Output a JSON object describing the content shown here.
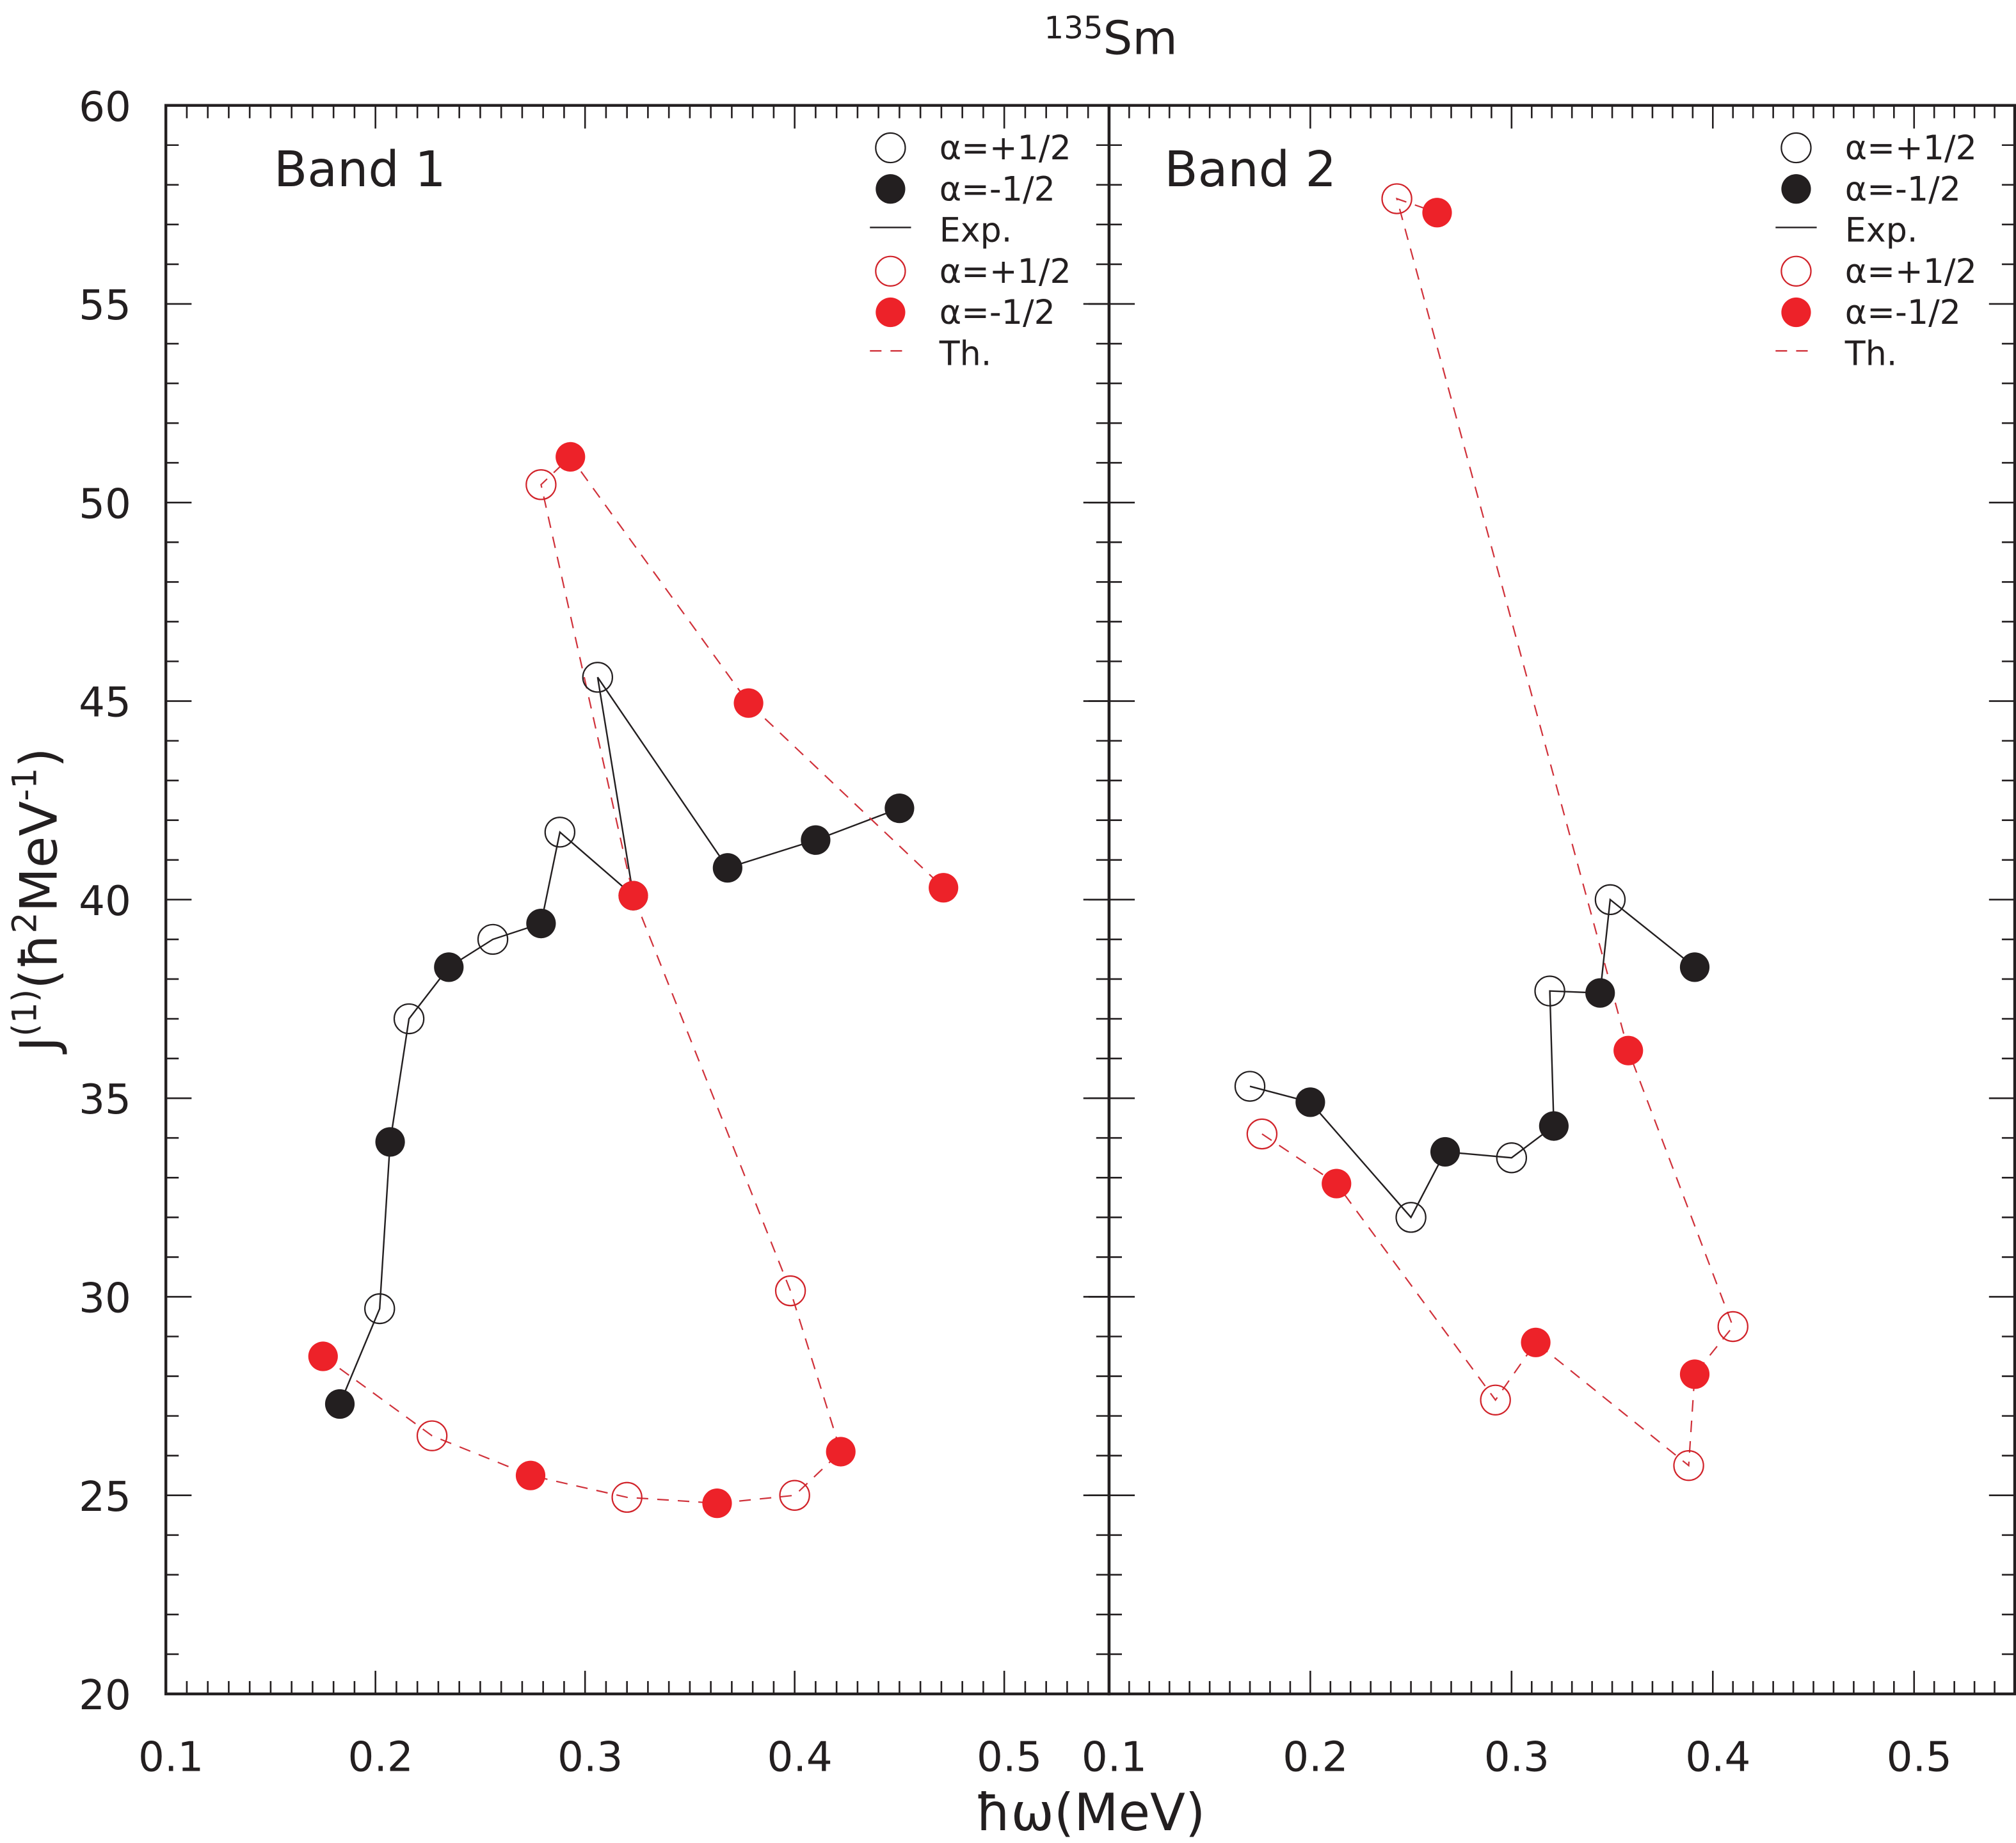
{
  "chart_data": {
    "type": "scatter",
    "title": "135Sm",
    "title_parts": {
      "mass_number": "135",
      "element": "Sm"
    },
    "xlabel": "ħω(MeV)",
    "ylabel": "J(1)(ħ2MeV-1)",
    "ylabel_parts": {
      "base": "J",
      "sup1": "(1)",
      "mid1": "(ħ",
      "sup2": "2",
      "mid2": "MeV",
      "sup3": "-1",
      "end": ")"
    },
    "xlim": [
      0.1,
      0.55
    ],
    "ylim": [
      20,
      60
    ],
    "x_ticks": [
      0.1,
      0.2,
      0.3,
      0.4,
      0.5
    ],
    "x_tick_labels": [
      "0.1",
      "0.2",
      "0.3",
      "0.4",
      "0.5"
    ],
    "x_minor_step": 0.01,
    "y_ticks": [
      20,
      25,
      30,
      35,
      40,
      45,
      50,
      55,
      60
    ],
    "y_tick_labels": [
      "20",
      "25",
      "30",
      "35",
      "40",
      "45",
      "50",
      "55",
      "60"
    ],
    "y_minor_step": 1,
    "grid": false,
    "legend_placement": "top-right",
    "legend": [
      {
        "label": "α=+1/2",
        "marker": "open-circle",
        "color": "#231f20"
      },
      {
        "label": "α=-1/2",
        "marker": "filled-circle",
        "color": "#231f20"
      },
      {
        "label": "Exp.",
        "marker": "solid-line",
        "color": "#231f20"
      },
      {
        "label": "α=+1/2",
        "marker": "open-circle",
        "color": "#d1232a"
      },
      {
        "label": "α=-1/2",
        "marker": "filled-circle",
        "color": "#ed2229"
      },
      {
        "label": "Th.",
        "marker": "dashed-line",
        "color": "#d0313a"
      }
    ],
    "colors": {
      "exp": "#231f20",
      "th_marker": "#ed2229",
      "th_line": "#d0313a"
    },
    "panels": [
      {
        "label": "Band 1",
        "series": [
          {
            "name": "Exp.",
            "style": "solid",
            "color": "#231f20",
            "points": [
              {
                "x": 0.183,
                "y": 27.3,
                "alpha": "-1/2"
              },
              {
                "x": 0.202,
                "y": 29.7,
                "alpha": "+1/2"
              },
              {
                "x": 0.207,
                "y": 33.9,
                "alpha": "-1/2"
              },
              {
                "x": 0.216,
                "y": 37.0,
                "alpha": "+1/2"
              },
              {
                "x": 0.235,
                "y": 38.3,
                "alpha": "-1/2"
              },
              {
                "x": 0.256,
                "y": 39.0,
                "alpha": "+1/2"
              },
              {
                "x": 0.279,
                "y": 39.4,
                "alpha": "-1/2"
              },
              {
                "x": 0.288,
                "y": 41.7,
                "alpha": "+1/2"
              },
              {
                "x": 0.323,
                "y": 40.1,
                "alpha": "-1/2"
              },
              {
                "x": 0.306,
                "y": 45.6,
                "alpha": "+1/2"
              },
              {
                "x": 0.368,
                "y": 40.8,
                "alpha": "-1/2"
              },
              {
                "x": 0.41,
                "y": 41.5,
                "alpha": "-1/2"
              },
              {
                "x": 0.45,
                "y": 42.3,
                "alpha": "-1/2"
              }
            ]
          },
          {
            "name": "Th.",
            "style": "dashed",
            "color": "#ed2229",
            "points": [
              {
                "x": 0.175,
                "y": 28.5,
                "alpha": "-1/2"
              },
              {
                "x": 0.227,
                "y": 26.5,
                "alpha": "+1/2"
              },
              {
                "x": 0.274,
                "y": 25.5,
                "alpha": "-1/2"
              },
              {
                "x": 0.32,
                "y": 24.95,
                "alpha": "+1/2"
              },
              {
                "x": 0.363,
                "y": 24.8,
                "alpha": "-1/2"
              },
              {
                "x": 0.4,
                "y": 25.0,
                "alpha": "+1/2"
              },
              {
                "x": 0.422,
                "y": 26.1,
                "alpha": "-1/2"
              },
              {
                "x": 0.398,
                "y": 30.15,
                "alpha": "+1/2"
              },
              {
                "x": 0.323,
                "y": 40.1,
                "alpha": "-1/2"
              },
              {
                "x": 0.279,
                "y": 50.45,
                "alpha": "+1/2"
              },
              {
                "x": 0.293,
                "y": 51.15,
                "alpha": "-1/2"
              },
              {
                "x": 0.378,
                "y": 44.95,
                "alpha": "-1/2"
              },
              {
                "x": 0.471,
                "y": 40.3,
                "alpha": "-1/2"
              }
            ]
          }
        ]
      },
      {
        "label": "Band 2",
        "series": [
          {
            "name": "Exp.",
            "style": "solid",
            "color": "#231f20",
            "points": [
              {
                "x": 0.17,
                "y": 35.3,
                "alpha": "+1/2"
              },
              {
                "x": 0.2,
                "y": 34.9,
                "alpha": "-1/2"
              },
              {
                "x": 0.25,
                "y": 32.0,
                "alpha": "+1/2"
              },
              {
                "x": 0.267,
                "y": 33.65,
                "alpha": "-1/2"
              },
              {
                "x": 0.3,
                "y": 33.5,
                "alpha": "+1/2"
              },
              {
                "x": 0.321,
                "y": 34.3,
                "alpha": "-1/2"
              },
              {
                "x": 0.319,
                "y": 37.7,
                "alpha": "+1/2"
              },
              {
                "x": 0.344,
                "y": 37.65,
                "alpha": "-1/2"
              },
              {
                "x": 0.349,
                "y": 40.0,
                "alpha": "+1/2"
              },
              {
                "x": 0.391,
                "y": 38.3,
                "alpha": "-1/2"
              }
            ]
          },
          {
            "name": "Th.",
            "style": "dashed",
            "color": "#ed2229",
            "points": [
              {
                "x": 0.176,
                "y": 34.1,
                "alpha": "+1/2"
              },
              {
                "x": 0.213,
                "y": 32.85,
                "alpha": "-1/2"
              },
              {
                "x": 0.292,
                "y": 27.4,
                "alpha": "+1/2"
              },
              {
                "x": 0.312,
                "y": 28.85,
                "alpha": "-1/2"
              },
              {
                "x": 0.388,
                "y": 25.75,
                "alpha": "+1/2"
              },
              {
                "x": 0.391,
                "y": 28.05,
                "alpha": "-1/2"
              },
              {
                "x": 0.41,
                "y": 29.25,
                "alpha": "+1/2"
              },
              {
                "x": 0.358,
                "y": 36.2,
                "alpha": "-1/2"
              },
              {
                "x": 0.243,
                "y": 57.65,
                "alpha": "+1/2"
              },
              {
                "x": 0.263,
                "y": 57.3,
                "alpha": "-1/2"
              }
            ]
          }
        ]
      }
    ]
  }
}
